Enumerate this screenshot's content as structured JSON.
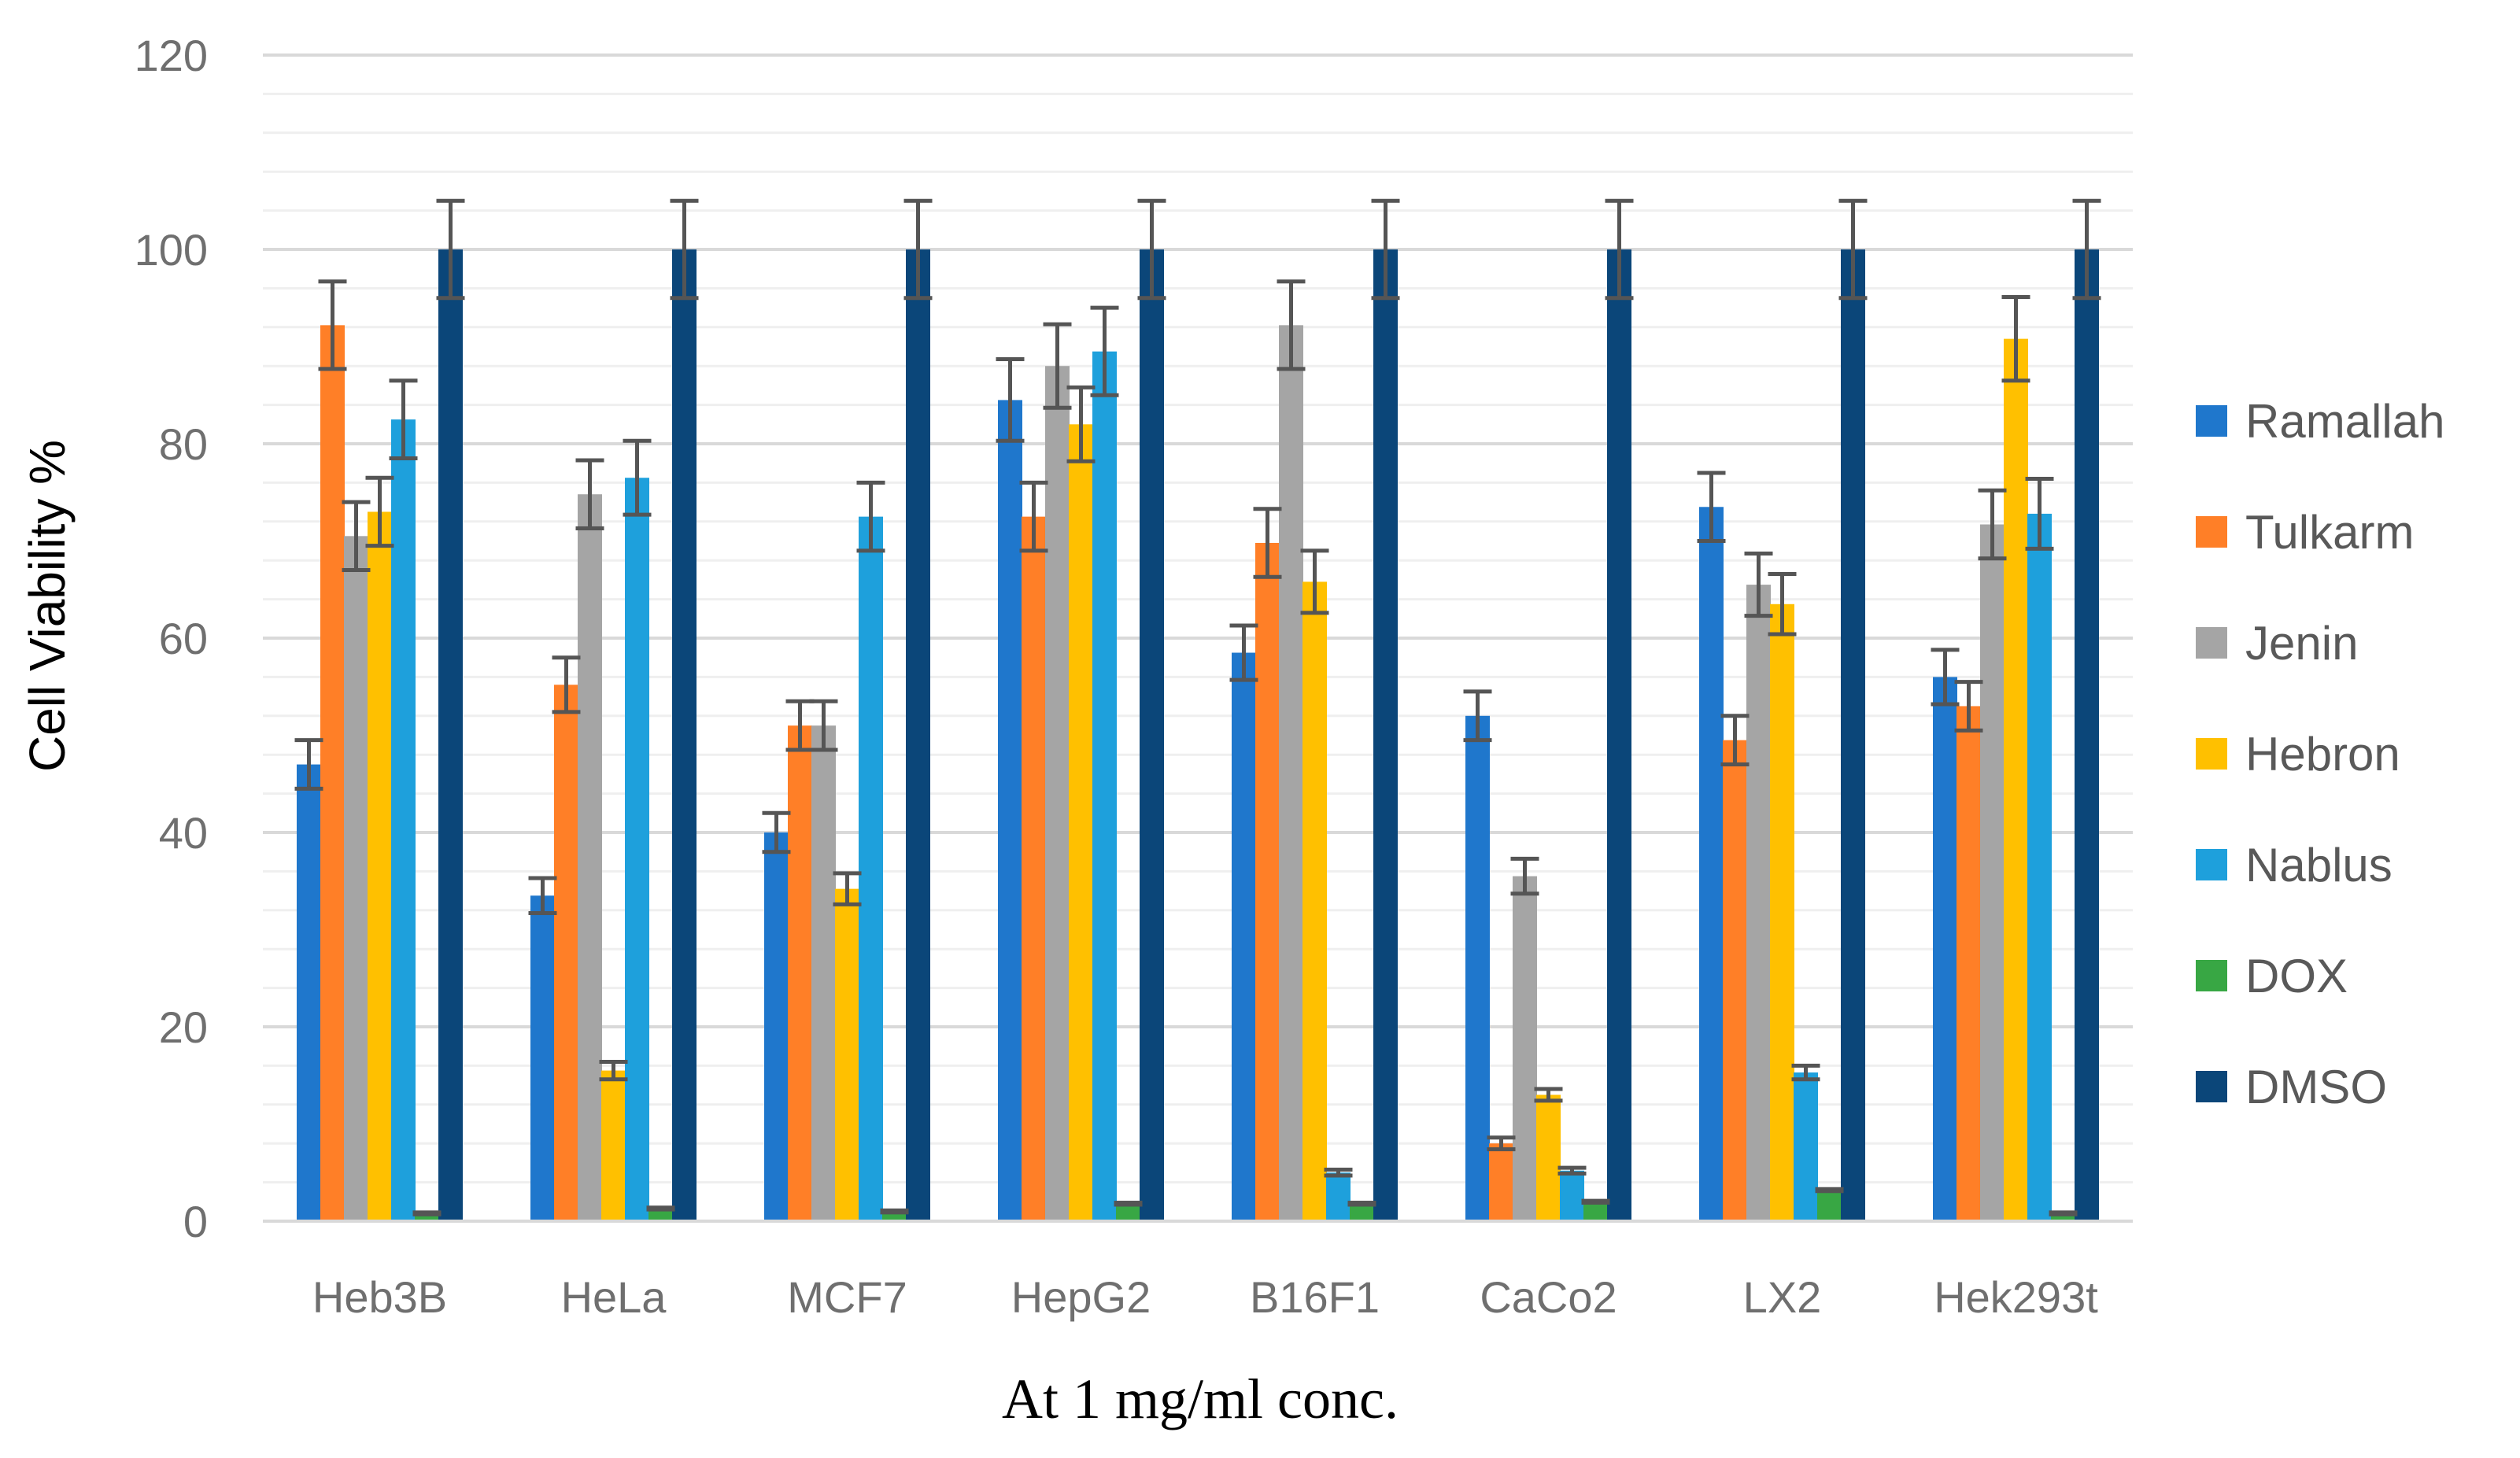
{
  "chart_data": {
    "type": "bar",
    "title": "",
    "xlabel": "At 1 mg/ml conc.",
    "ylabel": "Cell Viability %",
    "ylim": [
      0,
      120
    ],
    "yticks": [
      "0",
      "20",
      "40",
      "60",
      "80",
      "100",
      "120"
    ],
    "minor_grid_step": 4,
    "grid": true,
    "legend_position": "right",
    "categories": [
      "Heb3B",
      "HeLa",
      "MCF7",
      "HepG2",
      "B16F1",
      "CaCo2",
      "LX2",
      "Hek293t"
    ],
    "series": [
      {
        "name": "Ramallah",
        "color": "#1f77cc",
        "values": [
          47,
          33.5,
          40,
          84.5,
          58.5,
          52,
          73.5,
          56
        ],
        "errors": [
          2.5,
          1.8,
          2,
          4.2,
          2.8,
          2.5,
          3.5,
          2.8
        ]
      },
      {
        "name": "Tulkarm",
        "color": "#ff7f27",
        "values": [
          92.2,
          55.2,
          51,
          72.5,
          69.8,
          8,
          49.5,
          53
        ],
        "errors": [
          4.5,
          2.8,
          2.5,
          3.5,
          3.5,
          0.6,
          2.5,
          2.5
        ]
      },
      {
        "name": "Jenin",
        "color": "#a5a5a5",
        "values": [
          70.5,
          74.8,
          51,
          88,
          92.2,
          35.5,
          65.5,
          71.7
        ],
        "errors": [
          3.5,
          3.5,
          2.5,
          4.3,
          4.5,
          1.8,
          3.2,
          3.5
        ]
      },
      {
        "name": "Hebron",
        "color": "#ffc000",
        "values": [
          73,
          15.5,
          34.2,
          82,
          65.8,
          13,
          63.5,
          90.8
        ],
        "errors": [
          3.5,
          0.9,
          1.6,
          3.8,
          3.2,
          0.6,
          3.1,
          4.3
        ]
      },
      {
        "name": "Nablus",
        "color": "#1ea0dc",
        "values": [
          82.5,
          76.5,
          72.5,
          89.5,
          5,
          5.2,
          15.3,
          72.8
        ],
        "errors": [
          4,
          3.8,
          3.5,
          4.5,
          0.3,
          0.3,
          0.7,
          3.6
        ]
      },
      {
        "name": "DOX",
        "color": "#38a744",
        "values": [
          0.8,
          1.3,
          1,
          1.8,
          1.8,
          2,
          3.2,
          0.8
        ],
        "errors": [
          0.1,
          0.1,
          0.1,
          0.1,
          0.1,
          0.1,
          0.1,
          0.1
        ]
      },
      {
        "name": "DMSO",
        "color": "#0b4679",
        "values": [
          100,
          100,
          100,
          100,
          100,
          100,
          100,
          100
        ],
        "errors": [
          5,
          5,
          5,
          5,
          5,
          5,
          5,
          5
        ]
      }
    ]
  }
}
